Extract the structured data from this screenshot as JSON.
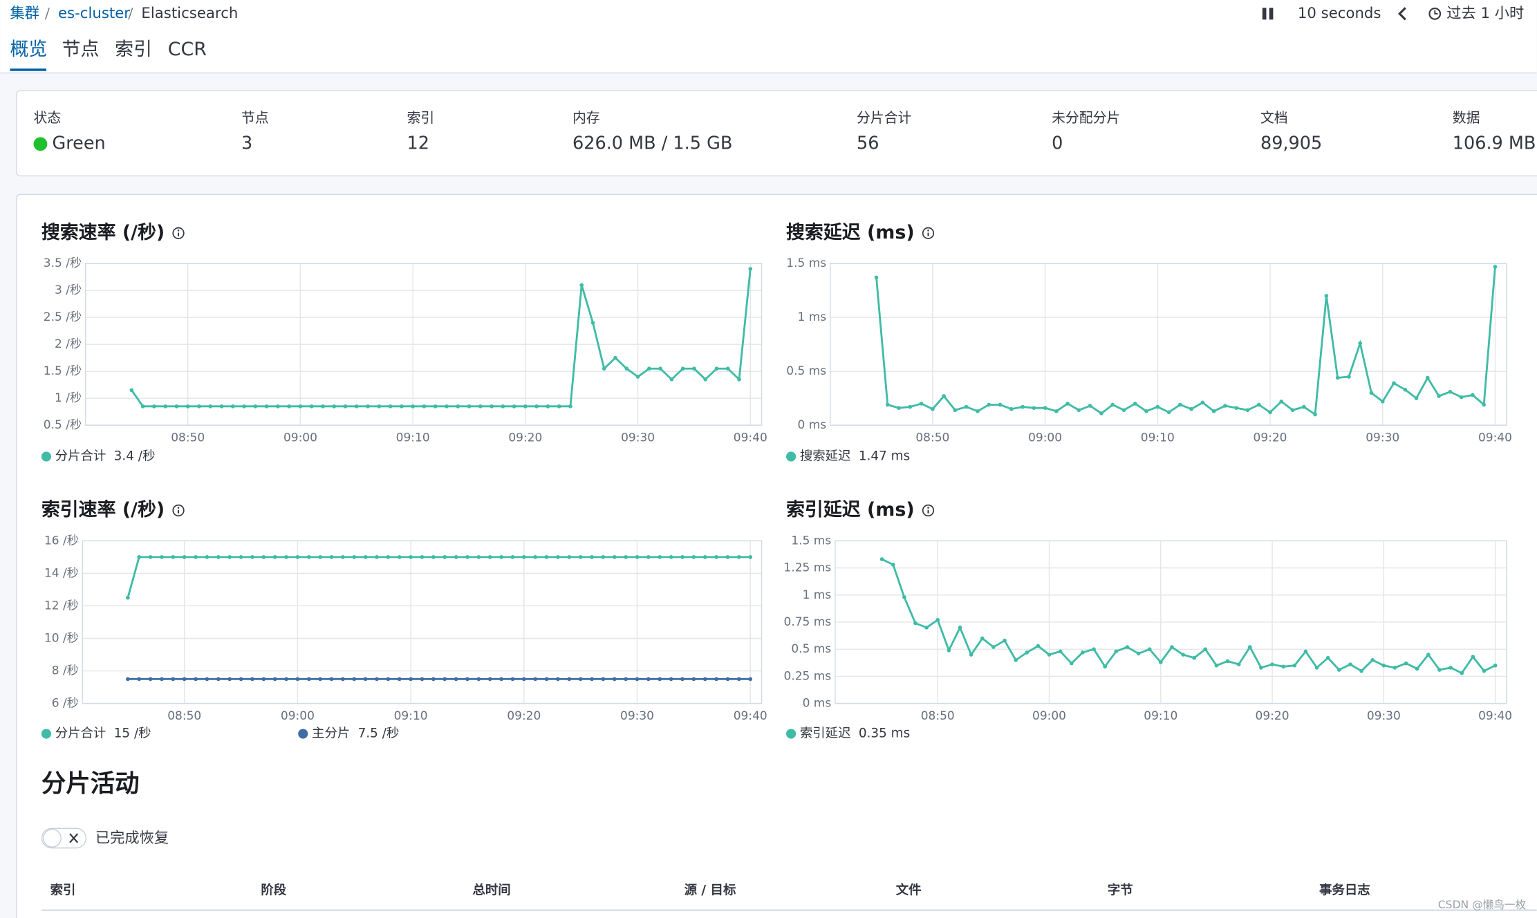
{
  "breadcrumb": [
    "集群",
    "es-cluster",
    "Elasticsearch"
  ],
  "toolbar": {
    "interval": "10 seconds",
    "time_range": "过去 1 小时"
  },
  "tabs": [
    "概览",
    "节点",
    "索引",
    "CCR"
  ],
  "stats": [
    {
      "label": "状态",
      "value": "Green"
    },
    {
      "label": "节点",
      "value": 3
    },
    {
      "label": "索引",
      "value": 12
    },
    {
      "label": "内存",
      "value": "626.0 MB / 1.5 GB"
    },
    {
      "label": "分片合计",
      "value": 56
    },
    {
      "label": "未分配分片",
      "value": 0
    },
    {
      "label": "文档",
      "value": "89,905"
    },
    {
      "label": "数据",
      "value": "106.9 MB"
    }
  ],
  "chart_data": [
    {
      "type": "line",
      "title": "搜索速率 (/秒)",
      "xlim": [
        520.9,
        581
      ],
      "xticks": [
        {
          "value": 530,
          "label": "08:50"
        },
        {
          "value": 540,
          "label": "09:00"
        },
        {
          "value": 550,
          "label": "09:10"
        },
        {
          "value": 560,
          "label": "09:20"
        },
        {
          "value": 570,
          "label": "09:30"
        },
        {
          "value": 580,
          "label": "09:40"
        }
      ],
      "ylim": [
        0.5,
        3.5
      ],
      "yticks": [
        {
          "value": 0.5,
          "label": "0.5 /秒"
        },
        {
          "value": 1,
          "label": "1 /秒"
        },
        {
          "value": 1.5,
          "label": "1.5 /秒"
        },
        {
          "value": 2,
          "label": "2 /秒"
        },
        {
          "value": 2.5,
          "label": "2.5 /秒"
        },
        {
          "value": 3,
          "label": "3 /秒"
        },
        {
          "value": 3.5,
          "label": "3.5 /秒"
        }
      ],
      "grid": true,
      "x": [
        525,
        526,
        527,
        528,
        529,
        530,
        531,
        532,
        533,
        534,
        535,
        536,
        537,
        538,
        539,
        540,
        541,
        542,
        543,
        544,
        545,
        546,
        547,
        548,
        549,
        550,
        551,
        552,
        553,
        554,
        555,
        556,
        557,
        558,
        559,
        560,
        561,
        562,
        563,
        564,
        565,
        566,
        567,
        568,
        569,
        570,
        571,
        572,
        573,
        574,
        575,
        576,
        577,
        578,
        579,
        580
      ],
      "series": [
        {
          "name": "分片合计",
          "legend_value": "3.4 /秒",
          "color": "#3fbba6",
          "values": [
            1.15,
            0.85,
            0.85,
            0.85,
            0.85,
            0.85,
            0.85,
            0.85,
            0.85,
            0.85,
            0.85,
            0.85,
            0.85,
            0.85,
            0.85,
            0.85,
            0.85,
            0.85,
            0.85,
            0.85,
            0.85,
            0.85,
            0.85,
            0.85,
            0.85,
            0.85,
            0.85,
            0.85,
            0.85,
            0.85,
            0.85,
            0.85,
            0.85,
            0.85,
            0.85,
            0.85,
            0.85,
            0.85,
            0.85,
            0.85,
            3.1,
            2.4,
            1.55,
            1.75,
            1.55,
            1.4,
            1.55,
            1.55,
            1.35,
            1.55,
            1.55,
            1.35,
            1.55,
            1.55,
            1.35,
            3.4
          ]
        }
      ]
    },
    {
      "type": "line",
      "title": "搜索延迟 (ms)",
      "xlim": [
        520.9,
        581
      ],
      "xticks": [
        {
          "value": 530,
          "label": "08:50"
        },
        {
          "value": 540,
          "label": "09:00"
        },
        {
          "value": 550,
          "label": "09:10"
        },
        {
          "value": 560,
          "label": "09:20"
        },
        {
          "value": 570,
          "label": "09:30"
        },
        {
          "value": 580,
          "label": "09:40"
        }
      ],
      "ylim": [
        0,
        1.5
      ],
      "yticks": [
        {
          "value": 0,
          "label": "0 ms"
        },
        {
          "value": 0.5,
          "label": "0.5 ms"
        },
        {
          "value": 1,
          "label": "1 ms"
        },
        {
          "value": 1.5,
          "label": "1.5 ms"
        }
      ],
      "grid": true,
      "x": [
        525,
        526,
        527,
        528,
        529,
        530,
        531,
        532,
        533,
        534,
        535,
        536,
        537,
        538,
        539,
        540,
        541,
        542,
        543,
        544,
        545,
        546,
        547,
        548,
        549,
        550,
        551,
        552,
        553,
        554,
        555,
        556,
        557,
        558,
        559,
        560,
        561,
        562,
        563,
        564,
        565,
        566,
        567,
        568,
        569,
        570,
        571,
        572,
        573,
        574,
        575,
        576,
        577,
        578,
        579,
        580
      ],
      "series": [
        {
          "name": "搜索延迟",
          "legend_value": "1.47 ms",
          "color": "#3fbba6",
          "values": [
            1.37,
            0.19,
            0.16,
            0.17,
            0.2,
            0.15,
            0.27,
            0.14,
            0.17,
            0.13,
            0.19,
            0.19,
            0.15,
            0.17,
            0.16,
            0.16,
            0.13,
            0.2,
            0.14,
            0.18,
            0.11,
            0.19,
            0.14,
            0.2,
            0.13,
            0.17,
            0.12,
            0.19,
            0.15,
            0.21,
            0.13,
            0.18,
            0.16,
            0.14,
            0.19,
            0.12,
            0.22,
            0.14,
            0.17,
            0.1,
            1.2,
            0.44,
            0.45,
            0.76,
            0.3,
            0.22,
            0.39,
            0.33,
            0.25,
            0.44,
            0.27,
            0.31,
            0.26,
            0.28,
            0.19,
            1.47
          ]
        }
      ]
    },
    {
      "type": "line",
      "title": "索引速率 (/秒)",
      "xlim": [
        521,
        581
      ],
      "xticks": [
        {
          "value": 530,
          "label": "08:50"
        },
        {
          "value": 540,
          "label": "09:00"
        },
        {
          "value": 550,
          "label": "09:10"
        },
        {
          "value": 560,
          "label": "09:20"
        },
        {
          "value": 570,
          "label": "09:30"
        },
        {
          "value": 580,
          "label": "09:40"
        }
      ],
      "ylim": [
        6,
        16
      ],
      "yticks": [
        {
          "value": 6,
          "label": "6 /秒"
        },
        {
          "value": 8,
          "label": "8 /秒"
        },
        {
          "value": 10,
          "label": "10 /秒"
        },
        {
          "value": 12,
          "label": "12 /秒"
        },
        {
          "value": 14,
          "label": "14 /秒"
        },
        {
          "value": 16,
          "label": "16 /秒"
        }
      ],
      "grid": true,
      "x": [
        525,
        526,
        527,
        528,
        529,
        530,
        531,
        532,
        533,
        534,
        535,
        536,
        537,
        538,
        539,
        540,
        541,
        542,
        543,
        544,
        545,
        546,
        547,
        548,
        549,
        550,
        551,
        552,
        553,
        554,
        555,
        556,
        557,
        558,
        559,
        560,
        561,
        562,
        563,
        564,
        565,
        566,
        567,
        568,
        569,
        570,
        571,
        572,
        573,
        574,
        575,
        576,
        577,
        578,
        579,
        580
      ],
      "series": [
        {
          "name": "分片合计",
          "legend_value": "15 /秒",
          "color": "#3fbba6",
          "values": [
            12.5,
            15,
            15,
            15,
            15,
            15,
            15,
            15,
            15,
            15,
            15,
            15,
            15,
            15,
            15,
            15,
            15,
            15,
            15,
            15,
            15,
            15,
            15,
            15,
            15,
            15,
            15,
            15,
            15,
            15,
            15,
            15,
            15,
            15,
            15,
            15,
            15,
            15,
            15,
            15,
            15,
            15,
            15,
            15,
            15,
            15,
            15,
            15,
            15,
            15,
            15,
            15,
            15,
            15,
            15,
            15
          ]
        },
        {
          "name": "主分片",
          "legend_value": "7.5 /秒",
          "color": "#3f6ea5",
          "values": [
            7.5,
            7.5,
            7.5,
            7.5,
            7.5,
            7.5,
            7.5,
            7.5,
            7.5,
            7.5,
            7.5,
            7.5,
            7.5,
            7.5,
            7.5,
            7.5,
            7.5,
            7.5,
            7.5,
            7.5,
            7.5,
            7.5,
            7.5,
            7.5,
            7.5,
            7.5,
            7.5,
            7.5,
            7.5,
            7.5,
            7.5,
            7.5,
            7.5,
            7.5,
            7.5,
            7.5,
            7.5,
            7.5,
            7.5,
            7.5,
            7.5,
            7.5,
            7.5,
            7.5,
            7.5,
            7.5,
            7.5,
            7.5,
            7.5,
            7.5,
            7.5,
            7.5,
            7.5,
            7.5,
            7.5,
            7.5
          ]
        }
      ]
    },
    {
      "type": "line",
      "title": "索引延迟 (ms)",
      "xlim": [
        520.8,
        581
      ],
      "xticks": [
        {
          "value": 530,
          "label": "08:50"
        },
        {
          "value": 540,
          "label": "09:00"
        },
        {
          "value": 550,
          "label": "09:10"
        },
        {
          "value": 560,
          "label": "09:20"
        },
        {
          "value": 570,
          "label": "09:30"
        },
        {
          "value": 580,
          "label": "09:40"
        }
      ],
      "ylim": [
        0,
        1.5
      ],
      "yticks": [
        {
          "value": 0,
          "label": "0 ms"
        },
        {
          "value": 0.25,
          "label": "0.25 ms"
        },
        {
          "value": 0.5,
          "label": "0.5 ms"
        },
        {
          "value": 0.75,
          "label": "0.75 ms"
        },
        {
          "value": 1,
          "label": "1 ms"
        },
        {
          "value": 1.25,
          "label": "1.25 ms"
        },
        {
          "value": 1.5,
          "label": "1.5 ms"
        }
      ],
      "grid": true,
      "x": [
        525,
        526,
        527,
        528,
        529,
        530,
        531,
        532,
        533,
        534,
        535,
        536,
        537,
        538,
        539,
        540,
        541,
        542,
        543,
        544,
        545,
        546,
        547,
        548,
        549,
        550,
        551,
        552,
        553,
        554,
        555,
        556,
        557,
        558,
        559,
        560,
        561,
        562,
        563,
        564,
        565,
        566,
        567,
        568,
        569,
        570,
        571,
        572,
        573,
        574,
        575,
        576,
        577,
        578,
        579,
        580
      ],
      "series": [
        {
          "name": "索引延迟",
          "legend_value": "0.35 ms",
          "color": "#3fbba6",
          "values": [
            1.33,
            1.28,
            0.98,
            0.74,
            0.7,
            0.77,
            0.49,
            0.7,
            0.45,
            0.6,
            0.52,
            0.58,
            0.4,
            0.47,
            0.53,
            0.45,
            0.48,
            0.37,
            0.47,
            0.5,
            0.34,
            0.48,
            0.52,
            0.46,
            0.5,
            0.38,
            0.52,
            0.45,
            0.42,
            0.5,
            0.35,
            0.39,
            0.36,
            0.52,
            0.33,
            0.36,
            0.34,
            0.35,
            0.48,
            0.33,
            0.42,
            0.31,
            0.36,
            0.3,
            0.4,
            0.35,
            0.33,
            0.37,
            0.32,
            0.45,
            0.31,
            0.33,
            0.28,
            0.43,
            0.3,
            0.35
          ]
        }
      ]
    }
  ],
  "shard_activity": {
    "title": "分片活动",
    "toggle_label": "已完成恢复",
    "columns": [
      "索引",
      "阶段",
      "总时间",
      "源 / 目标",
      "文件",
      "字节",
      "事务日志"
    ]
  },
  "watermark": "CSDN @懒鸟一枚"
}
